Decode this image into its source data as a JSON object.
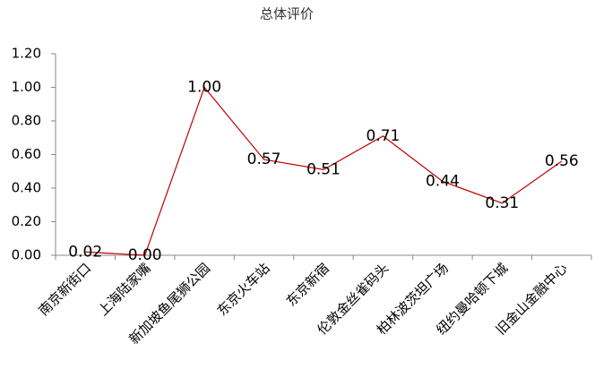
{
  "chart_data": {
    "type": "line",
    "title": "总体评价",
    "categories": [
      "南京新街口",
      "上海陆家嘴",
      "新加坡鱼尾狮公园",
      "东京火车站",
      "东京新宿",
      "伦敦金丝雀码头",
      "柏林波茨坦广场",
      "纽约曼哈顿下城",
      "旧金山金融中心"
    ],
    "values": [
      0.02,
      0.0,
      1.0,
      0.57,
      0.51,
      0.71,
      0.44,
      0.31,
      0.56
    ],
    "value_labels": [
      "0.02",
      "0.00",
      "1.00",
      "0.57",
      "0.51",
      "0.71",
      "0.44",
      "0.31",
      "0.56"
    ],
    "color": "#c00000",
    "ylim": [
      0,
      1.2
    ],
    "yticks": [
      {
        "value": 0,
        "label": "0.00"
      },
      {
        "value": 0.2,
        "label": "0.20"
      },
      {
        "value": 0.4,
        "label": "0.40"
      },
      {
        "value": 0.6,
        "label": "0.60"
      },
      {
        "value": 0.8,
        "label": "0.80"
      },
      {
        "value": 1,
        "label": "1.00"
      },
      {
        "value": 1.2,
        "label": "1.20"
      }
    ],
    "grid": false
  }
}
